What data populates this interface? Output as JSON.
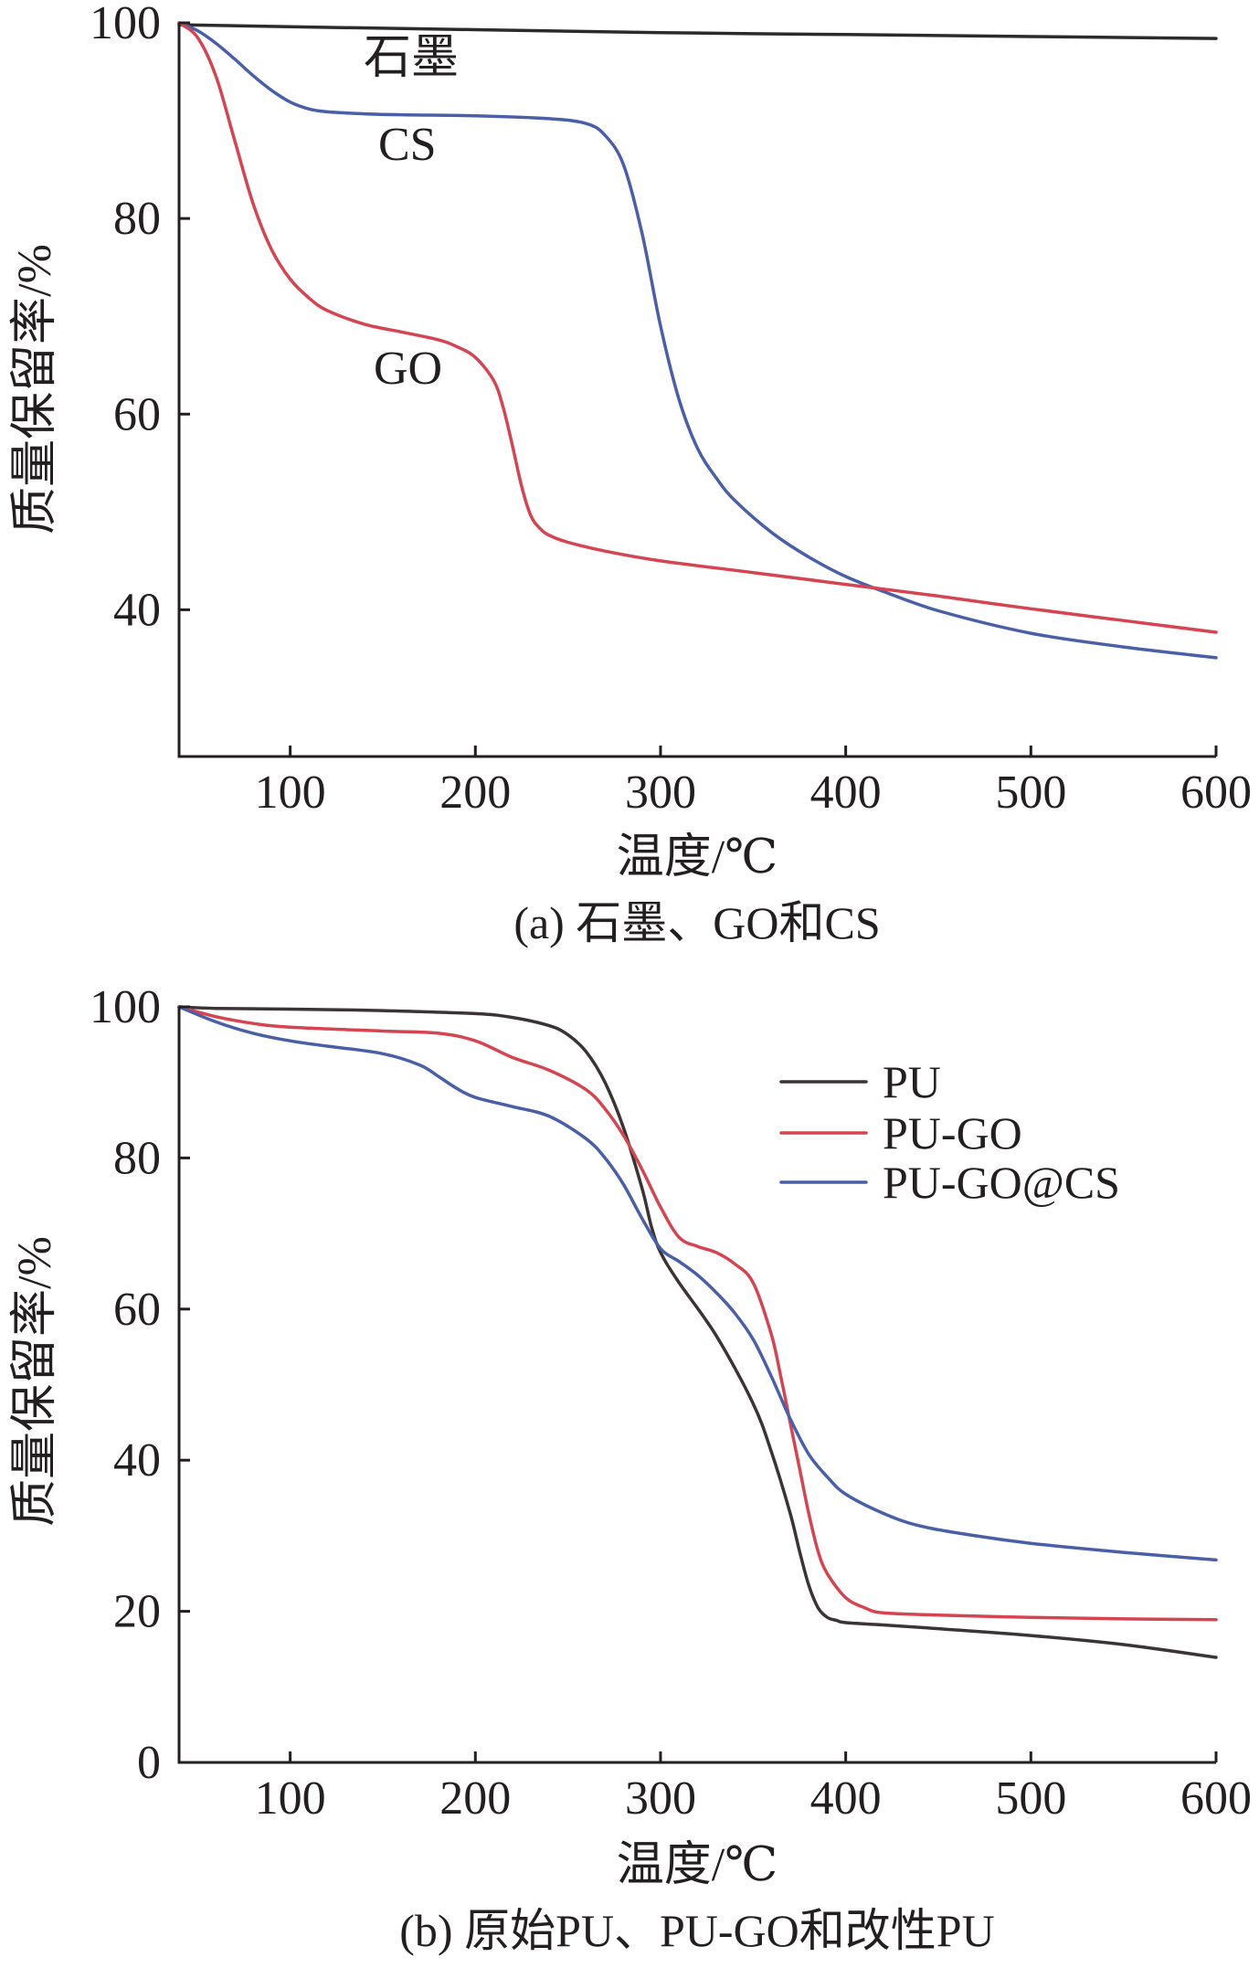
{
  "chart_data": [
    {
      "type": "line",
      "xlabel": "温度/℃",
      "ylabel": "质量保留率/%",
      "caption": "(a) 石墨、GO和CS",
      "xlim": [
        40,
        600
      ],
      "ylim": [
        25,
        100
      ],
      "xticks": [
        100,
        200,
        300,
        400,
        500,
        600
      ],
      "yticks": [
        40,
        60,
        80,
        100
      ],
      "grid": false,
      "legend": "inline labels",
      "series": [
        {
          "name": "石墨",
          "color": "#2b2b2b",
          "x": [
            40,
            100,
            200,
            300,
            400,
            500,
            600
          ],
          "y": [
            99.8,
            99.6,
            99.3,
            99.0,
            98.8,
            98.6,
            98.4
          ]
        },
        {
          "name": "CS",
          "color": "#4a5fa8",
          "x": [
            40,
            50,
            60,
            70,
            80,
            90,
            100,
            110,
            120,
            140,
            160,
            200,
            240,
            260,
            270,
            280,
            290,
            300,
            310,
            320,
            330,
            340,
            360,
            380,
            400,
            420,
            450,
            500,
            550,
            600
          ],
          "y": [
            100,
            99.2,
            97.9,
            96.3,
            94.6,
            93.1,
            91.9,
            91.2,
            90.9,
            90.7,
            90.6,
            90.5,
            90.2,
            89.7,
            88.5,
            85.5,
            78.5,
            69.0,
            61.5,
            56.5,
            53.5,
            51.2,
            47.9,
            45.4,
            43.4,
            41.9,
            39.9,
            37.6,
            36.2,
            35.1
          ]
        },
        {
          "name": "GO",
          "color": "#d64452",
          "x": [
            40,
            50,
            60,
            70,
            80,
            90,
            100,
            110,
            120,
            140,
            160,
            180,
            190,
            200,
            210,
            215,
            220,
            225,
            230,
            235,
            240,
            250,
            270,
            300,
            350,
            400,
            450,
            500,
            550,
            600
          ],
          "y": [
            100,
            98.5,
            94.5,
            88.0,
            81.5,
            76.8,
            73.8,
            71.9,
            70.6,
            69.2,
            68.4,
            67.6,
            66.9,
            65.8,
            63.4,
            60.7,
            56.8,
            52.6,
            49.6,
            48.3,
            47.6,
            46.9,
            46.0,
            45.0,
            43.8,
            42.6,
            41.4,
            40.1,
            38.9,
            37.7
          ]
        }
      ]
    },
    {
      "type": "line",
      "xlabel": "温度/℃",
      "ylabel": "质量保留率/%",
      "caption": "(b) 原始PU、PU-GO和改性PU",
      "xlim": [
        40,
        600
      ],
      "ylim": [
        0,
        100
      ],
      "xticks": [
        100,
        200,
        300,
        400,
        500,
        600
      ],
      "yticks": [
        0,
        20,
        40,
        60,
        80,
        100
      ],
      "grid": false,
      "legend": "top-right",
      "series": [
        {
          "name": "PU",
          "color": "#3c3434",
          "x": [
            40,
            60,
            100,
            150,
            200,
            220,
            240,
            250,
            260,
            270,
            280,
            290,
            295,
            300,
            310,
            330,
            350,
            360,
            370,
            375,
            380,
            385,
            390,
            395,
            400,
            420,
            450,
            500,
            550,
            600
          ],
          "y": [
            100,
            99.8,
            99.7,
            99.5,
            99.1,
            98.6,
            97.5,
            96.3,
            94.0,
            90.0,
            84.0,
            76.0,
            71.0,
            67.5,
            63.5,
            56.5,
            47.5,
            41.0,
            33.0,
            28.0,
            23.5,
            20.5,
            19.2,
            18.8,
            18.5,
            18.2,
            17.7,
            16.8,
            15.6,
            13.9
          ]
        },
        {
          "name": "PU-GO",
          "color": "#d64452",
          "x": [
            40,
            60,
            80,
            100,
            150,
            180,
            200,
            220,
            240,
            260,
            270,
            280,
            290,
            300,
            310,
            320,
            330,
            340,
            350,
            360,
            365,
            370,
            375,
            380,
            385,
            390,
            400,
            410,
            420,
            450,
            500,
            550,
            600
          ],
          "y": [
            100,
            98.7,
            97.8,
            97.3,
            96.8,
            96.5,
            95.5,
            93.3,
            91.6,
            89.0,
            86.5,
            83.0,
            78.5,
            73.5,
            69.5,
            68.3,
            67.5,
            66.0,
            63.5,
            56.5,
            51.0,
            45.0,
            39.0,
            33.0,
            28.0,
            25.0,
            21.8,
            20.5,
            19.8,
            19.5,
            19.2,
            19.0,
            18.9
          ]
        },
        {
          "name": "PU-GO@CS",
          "color": "#4a5fa8",
          "x": [
            40,
            60,
            80,
            100,
            120,
            150,
            170,
            180,
            190,
            200,
            220,
            240,
            260,
            270,
            280,
            290,
            300,
            310,
            320,
            330,
            340,
            350,
            360,
            370,
            380,
            390,
            400,
            420,
            440,
            470,
            500,
            550,
            600
          ],
          "y": [
            100,
            98.0,
            96.5,
            95.5,
            94.8,
            93.8,
            92.3,
            90.8,
            89.2,
            88.0,
            86.8,
            85.5,
            82.5,
            80.0,
            76.5,
            72.0,
            68.0,
            66.3,
            64.5,
            62.2,
            59.5,
            56.0,
            51.0,
            45.5,
            40.8,
            37.8,
            35.5,
            33.0,
            31.3,
            30.0,
            29.0,
            27.8,
            26.8
          ]
        }
      ]
    }
  ]
}
